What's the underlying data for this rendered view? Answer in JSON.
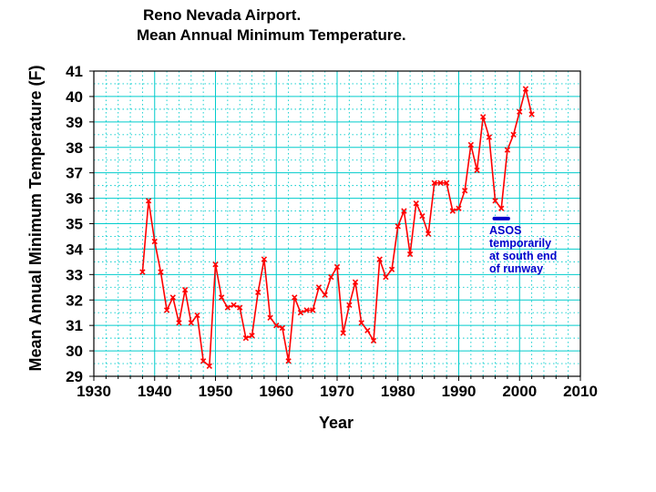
{
  "chart_data": {
    "type": "line",
    "title_line1": "Reno Nevada Airport.",
    "title_line2": "Mean Annual Minimum Temperature.",
    "xlabel": "Year",
    "ylabel": "Mean Annual Minimum Temperature (F)",
    "xlim": [
      1930,
      2010
    ],
    "ylim": [
      29,
      41
    ],
    "xticks": [
      "1930",
      "1940",
      "1950",
      "1960",
      "1970",
      "1980",
      "1990",
      "2000",
      "2010"
    ],
    "yticks": [
      "29",
      "30",
      "31",
      "32",
      "33",
      "34",
      "35",
      "36",
      "37",
      "38",
      "39",
      "40",
      "41"
    ],
    "grid": true,
    "colors": {
      "series": "#ff0000",
      "grid": "#00cccc",
      "annotation": "#0000cc"
    },
    "series": [
      {
        "name": "Mean Annual Minimum Temperature",
        "x": [
          1938,
          1939,
          1940,
          1941,
          1942,
          1943,
          1944,
          1945,
          1946,
          1947,
          1948,
          1949,
          1950,
          1951,
          1952,
          1953,
          1954,
          1955,
          1956,
          1957,
          1958,
          1959,
          1960,
          1961,
          1962,
          1963,
          1964,
          1965,
          1966,
          1967,
          1968,
          1969,
          1970,
          1971,
          1972,
          1973,
          1974,
          1975,
          1976,
          1977,
          1978,
          1979,
          1980,
          1981,
          1982,
          1983,
          1984,
          1985,
          1986,
          1987,
          1988,
          1989,
          1990,
          1991,
          1992,
          1993,
          1994,
          1995,
          1996,
          1997,
          1998,
          1999,
          2000,
          2001,
          2002
        ],
        "values": [
          33.1,
          35.9,
          34.3,
          33.1,
          31.6,
          32.1,
          31.1,
          32.4,
          31.1,
          31.4,
          29.6,
          29.4,
          33.4,
          32.1,
          31.7,
          31.8,
          31.7,
          30.5,
          30.6,
          32.3,
          33.6,
          31.3,
          31.0,
          30.9,
          29.6,
          32.1,
          31.5,
          31.6,
          31.6,
          32.5,
          32.2,
          32.9,
          33.3,
          30.7,
          31.8,
          32.7,
          31.1,
          30.8,
          30.4,
          33.6,
          32.9,
          33.2,
          34.9,
          35.5,
          33.8,
          35.8,
          35.3,
          34.6,
          36.6,
          36.6,
          36.6,
          35.5,
          35.6,
          36.3,
          38.1,
          37.1,
          39.2,
          38.4,
          35.9,
          35.6,
          37.9,
          38.5,
          39.4,
          40.3,
          39.3
        ]
      }
    ],
    "annotation": {
      "marker_x": [
        1996,
        1998
      ],
      "marker_y": 35.2,
      "text_lines": [
        "ASOS",
        "temporarily",
        "at south end",
        "of runway"
      ]
    }
  }
}
